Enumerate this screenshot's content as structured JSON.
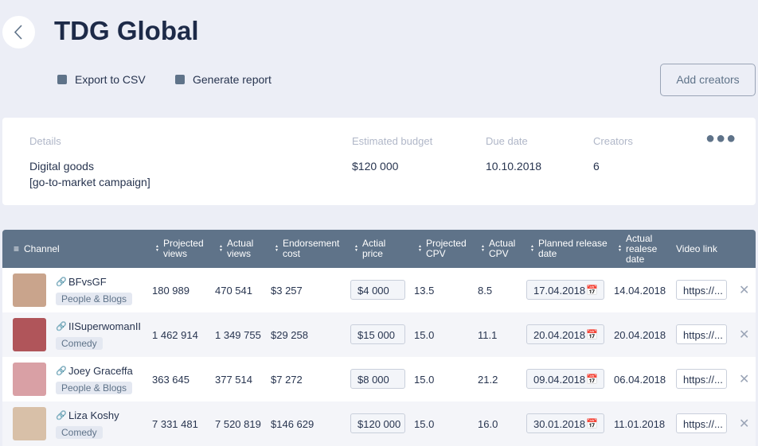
{
  "header": {
    "title": "TDG Global",
    "actions": [
      "Export to CSV",
      "Generate report"
    ],
    "add_button": "Add creators"
  },
  "details": {
    "labels": [
      "Details",
      "Estimated budget",
      "Due date",
      "Creators"
    ],
    "description": [
      "Digital goods",
      "[go-to-market campaign]"
    ],
    "budget": "$120 000",
    "due_date": "10.10.2018",
    "creators": "6"
  },
  "table": {
    "columns": [
      "Channel",
      "Projected views",
      "Actual views",
      "Endorsement cost",
      "Actial price",
      "Projected CPV",
      "Actual CPV",
      "Planned release date",
      "Actual realese date",
      "Video link"
    ],
    "rows": [
      [
        "BFvsGF",
        "People & Blogs",
        "180 989",
        "470 541",
        "$3 257",
        "$4 000",
        "13.5",
        "8.5",
        "17.04.2018",
        "14.04.2018",
        "https://..."
      ],
      [
        "IISuperwomanII",
        "Comedy",
        "1 462 914",
        "1 349 755",
        "$29 258",
        "$15 000",
        "15.0",
        "11.1",
        "20.04.2018",
        "20.04.2018",
        "https://..."
      ],
      [
        "Joey Graceffa",
        "People & Blogs",
        "363 645",
        "377 514",
        "$7 272",
        "$8 000",
        "15.0",
        "21.2",
        "09.04.2018",
        "06.04.2018",
        "https://..."
      ],
      [
        "Liza Koshy",
        "Comedy",
        "7 331 481",
        "7 520 819",
        "$146 629",
        "$120 000",
        "15.0",
        "16.0",
        "30.01.2018",
        "11.01.2018",
        "https://..."
      ]
    ]
  }
}
